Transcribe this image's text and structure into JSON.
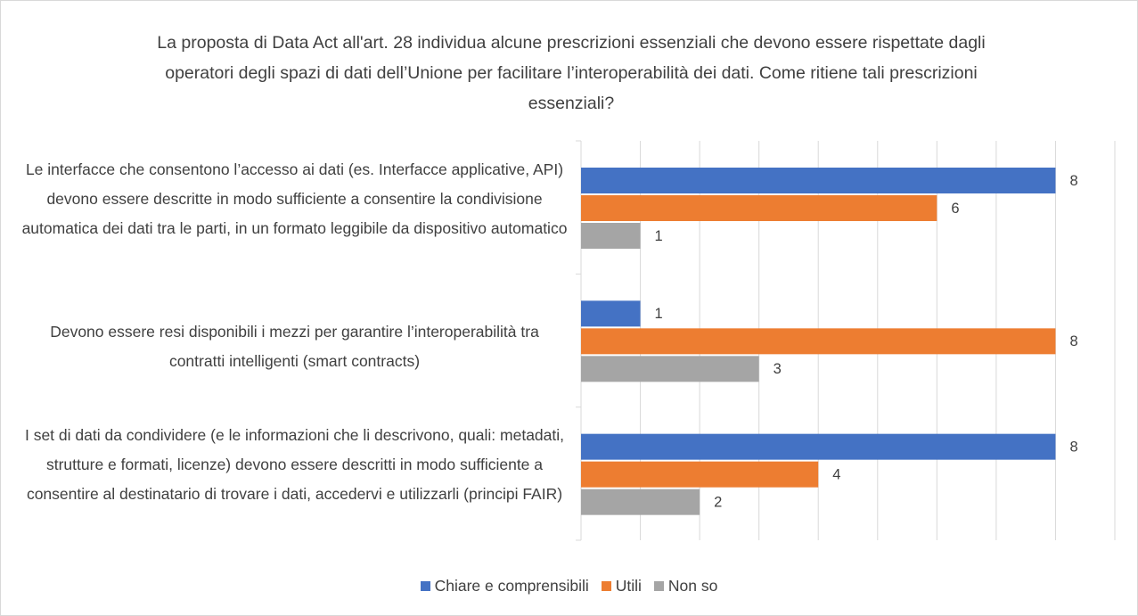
{
  "chart_data": {
    "type": "bar",
    "orientation": "horizontal",
    "title": "La proposta di Data Act all'art. 28 individua alcune prescrizioni essenziali che devono essere rispettate dagli operatori degli spazi di dati dell’Unione per facilitare l’interoperabilità dei dati. Come ritiene tali prescrizioni essenziali?",
    "categories": [
      "Le interfacce che consentono l’accesso ai dati (es. Interfacce applicative, API) devono essere descritte in modo sufficiente a consentire la condivisione automatica dei dati tra le parti, in un formato leggibile da dispositivo automatico",
      "Devono essere resi disponibili i mezzi per garantire l’interoperabilità tra contratti intelligenti (smart contracts)",
      "I set di dati da condividere (e le informazioni che li descrivono, quali: metadati, strutture e formati, licenze) devono essere descritti in modo sufficiente a consentire al destinatario di trovare i dati, accedervi e utilizzarli (principi FAIR)"
    ],
    "series": [
      {
        "name": "Chiare e comprensibili",
        "color": "#4472c4",
        "values": [
          8,
          1,
          8
        ]
      },
      {
        "name": "Utili",
        "color": "#ed7d31",
        "values": [
          6,
          8,
          4
        ]
      },
      {
        "name": "Non so",
        "color": "#a5a5a5",
        "values": [
          1,
          3,
          2
        ]
      }
    ],
    "xlim": [
      0,
      9
    ],
    "xticks": [
      0,
      1,
      2,
      3,
      4,
      5,
      6,
      7,
      8,
      9
    ],
    "grid": true,
    "legend": "bottom"
  }
}
